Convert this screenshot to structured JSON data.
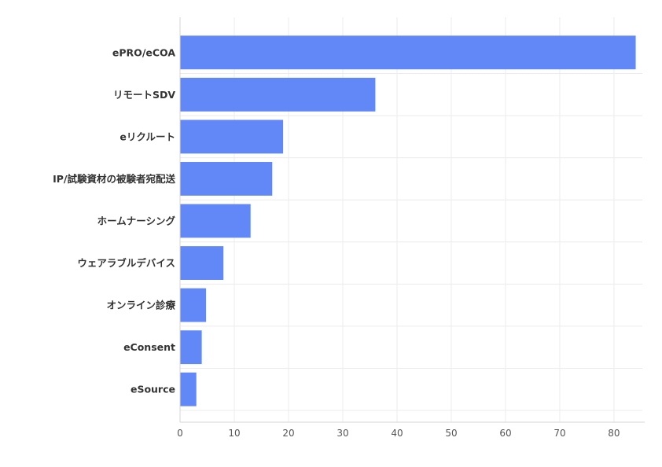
{
  "chart_data": {
    "type": "bar",
    "orientation": "horizontal",
    "title": "",
    "xlabel": "",
    "ylabel": "",
    "categories": [
      "ePRO/eCOA",
      "リモートSDV",
      "eリクルート",
      "IP/試験資材の被験者宛配送",
      "ホームナーシング",
      "ウェアラブルデバイス",
      "オンライン診療",
      "eConsent",
      "eSource"
    ],
    "values": [
      84,
      36,
      19,
      17,
      13,
      8,
      4.8,
      4,
      3
    ],
    "xlim": [
      0,
      84.5
    ],
    "xticks": [
      0,
      10,
      20,
      30,
      40,
      50,
      60,
      70,
      80
    ],
    "grid": true,
    "legend": "none",
    "bar_color": "#6288f8"
  }
}
